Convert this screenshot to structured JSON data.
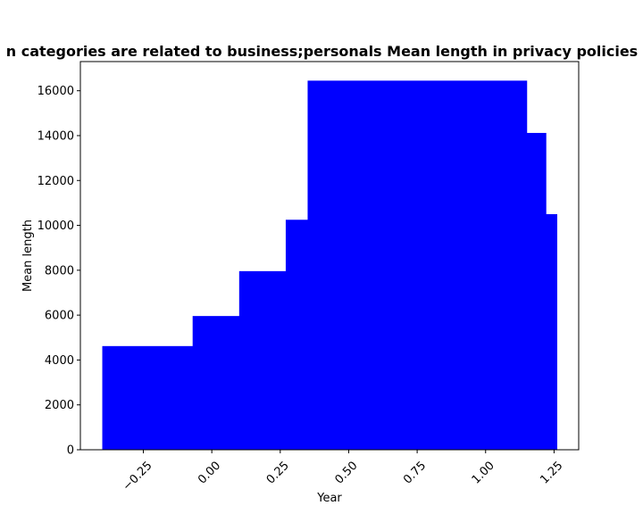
{
  "chart_data": {
    "type": "bar",
    "title": "n categories are related to business;personals Mean length in privacy policies b",
    "xlabel": "Year",
    "ylabel": "Mean length",
    "xlim": [
      -0.48,
      1.34
    ],
    "ylim": [
      0,
      17300
    ],
    "xticks": [
      -0.25,
      0.0,
      0.25,
      0.5,
      0.75,
      1.0,
      1.25
    ],
    "xtick_labels": [
      "−0.25",
      "0.00",
      "0.25",
      "0.50",
      "0.75",
      "1.00",
      "1.25"
    ],
    "yticks": [
      0,
      2000,
      4000,
      6000,
      8000,
      10000,
      12000,
      14000,
      16000
    ],
    "ytick_labels": [
      "0",
      "2000",
      "4000",
      "6000",
      "8000",
      "10000",
      "12000",
      "14000",
      "16000"
    ],
    "bar_color": "#0000ff",
    "bars": [
      {
        "x0": -0.4,
        "x1": -0.07,
        "value": 4620
      },
      {
        "x0": -0.07,
        "x1": 0.1,
        "value": 5960
      },
      {
        "x0": 0.1,
        "x1": 0.27,
        "value": 7960
      },
      {
        "x0": 0.27,
        "x1": 0.35,
        "value": 10250
      },
      {
        "x0": 0.35,
        "x1": 1.15,
        "value": 16450
      },
      {
        "x0": 1.15,
        "x1": 1.22,
        "value": 14120
      },
      {
        "x0": 1.22,
        "x1": 1.26,
        "value": 10500
      }
    ],
    "grid": false,
    "legend": "none"
  }
}
